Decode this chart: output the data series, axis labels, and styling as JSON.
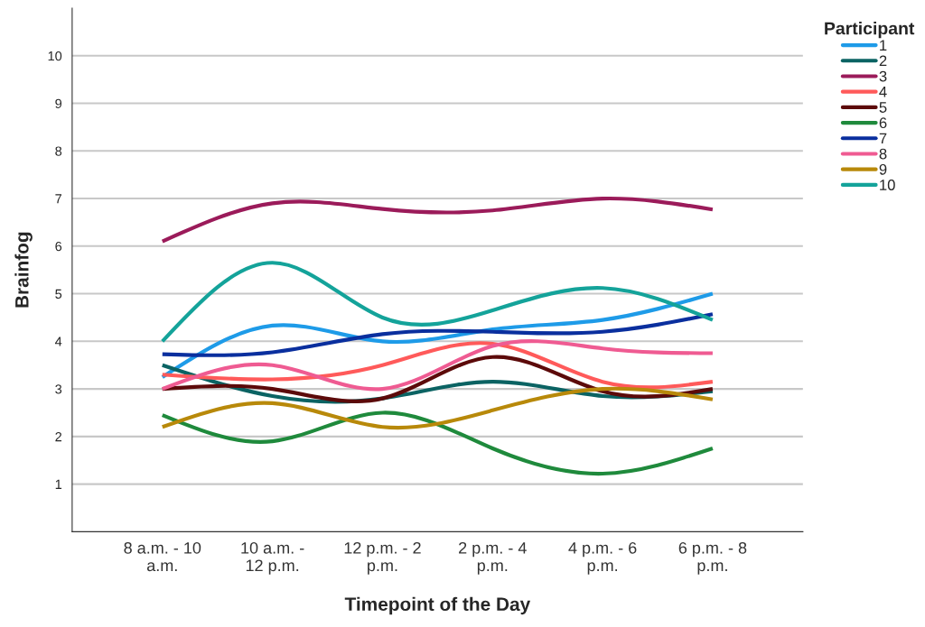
{
  "chart_data": {
    "type": "line",
    "xlabel": "Timepoint of the Day",
    "ylabel": "Brainfog",
    "legend_title": "Participant",
    "categories": [
      "8 a.m. - 10\na.m.",
      "10 a.m. -\n12 p.m.",
      "12 p.m. - 2\np.m.",
      "2 p.m. - 4\np.m.",
      "4 p.m. - 6\np.m.",
      "6 p.m. - 8\np.m."
    ],
    "series": [
      {
        "name": "1",
        "color": "#1e9be8",
        "values": [
          3.25,
          4.33,
          4.0,
          4.25,
          4.45,
          5.0
        ]
      },
      {
        "name": "2",
        "color": "#0b6363",
        "values": [
          3.5,
          2.85,
          2.8,
          3.15,
          2.85,
          2.95
        ]
      },
      {
        "name": "3",
        "color": "#9b1b5a",
        "values": [
          6.1,
          6.9,
          6.78,
          6.75,
          7.0,
          6.77
        ]
      },
      {
        "name": "4",
        "color": "#ff5a5a",
        "values": [
          3.3,
          3.2,
          3.5,
          3.95,
          3.15,
          3.15
        ]
      },
      {
        "name": "5",
        "color": "#5c0a0a",
        "values": [
          3.0,
          3.0,
          2.8,
          3.67,
          2.95,
          3.0
        ]
      },
      {
        "name": "6",
        "color": "#1f8a3c",
        "values": [
          2.45,
          1.9,
          2.5,
          1.75,
          1.22,
          1.75
        ]
      },
      {
        "name": "7",
        "color": "#0a2f9e",
        "values": [
          3.73,
          3.77,
          4.15,
          4.2,
          4.2,
          4.57
        ]
      },
      {
        "name": "8",
        "color": "#ef5b92",
        "values": [
          3.0,
          3.5,
          3.0,
          3.9,
          3.85,
          3.75
        ]
      },
      {
        "name": "9",
        "color": "#b8890a",
        "values": [
          2.2,
          2.7,
          2.2,
          2.55,
          3.0,
          2.78
        ]
      },
      {
        "name": "10",
        "color": "#14a39a",
        "values": [
          4.0,
          5.65,
          4.5,
          4.65,
          5.12,
          4.45
        ]
      }
    ],
    "ylim": [
      0,
      11
    ],
    "yticks": [
      1,
      2,
      3,
      4,
      5,
      6,
      7,
      8,
      9,
      10
    ],
    "grid": "y",
    "legend": "right",
    "marker": "none",
    "line_style": "solid"
  }
}
